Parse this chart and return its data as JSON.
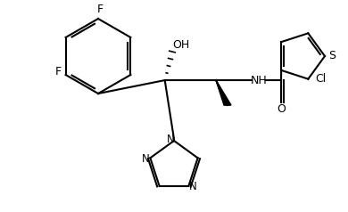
{
  "bg_color": "#ffffff",
  "line_color": "#000000",
  "atom_label_color": "#000000",
  "heteroatom_colors": {
    "N": "#000000",
    "O": "#000000",
    "S": "#000000",
    "F": "#000000",
    "Cl": "#000000"
  },
  "figure_width": 3.9,
  "figure_height": 2.38,
  "dpi": 100
}
